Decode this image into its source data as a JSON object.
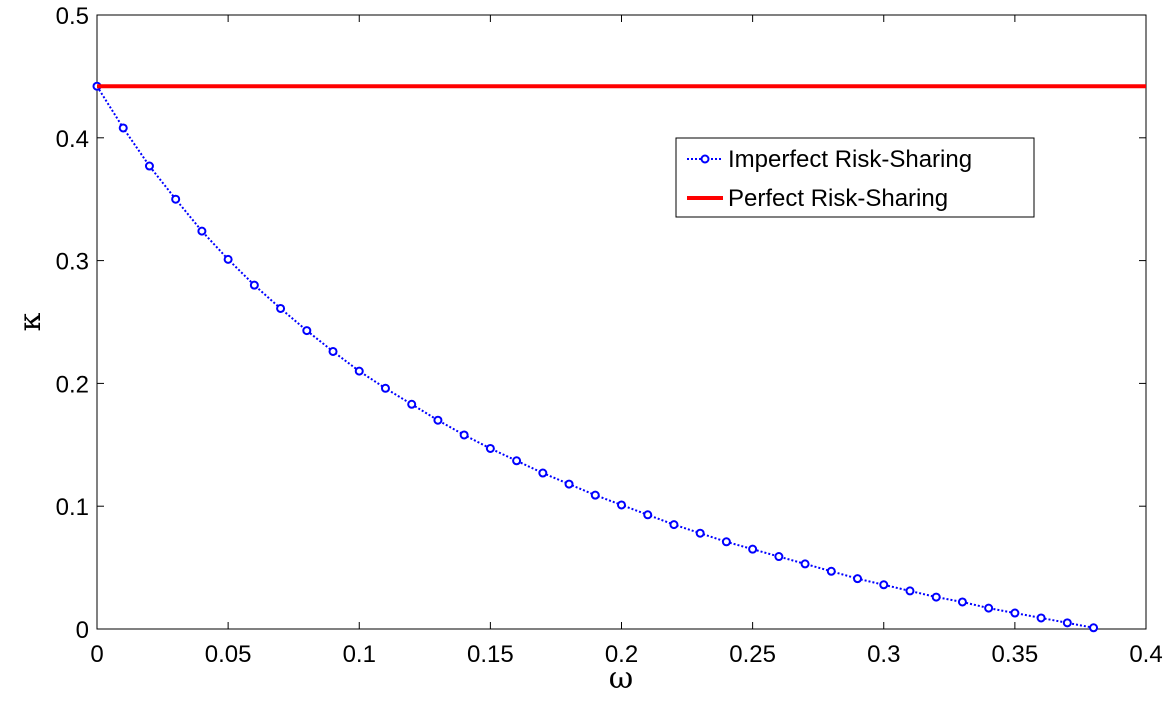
{
  "chart_data": {
    "type": "line",
    "title": "",
    "xlabel": "ω",
    "ylabel": "κ",
    "xlim": [
      0,
      0.4
    ],
    "ylim": [
      0,
      0.5
    ],
    "grid": false,
    "legend_position": "top-right",
    "x_ticks": [
      "0",
      "0.05",
      "0.1",
      "0.15",
      "0.2",
      "0.25",
      "0.3",
      "0.35",
      "0.4"
    ],
    "y_ticks": [
      "0",
      "0.1",
      "0.2",
      "0.3",
      "0.4",
      "0.5"
    ],
    "series": [
      {
        "name": "Imperfect Risk-Sharing",
        "color": "#0000ff",
        "line_style": "dotted",
        "marker": "circle",
        "x": [
          0,
          0.01,
          0.02,
          0.03,
          0.04,
          0.05,
          0.06,
          0.07,
          0.08,
          0.09,
          0.1,
          0.11,
          0.12,
          0.13,
          0.14,
          0.15,
          0.16,
          0.17,
          0.18,
          0.19,
          0.2,
          0.21,
          0.22,
          0.23,
          0.24,
          0.25,
          0.26,
          0.27,
          0.28,
          0.29,
          0.3,
          0.31,
          0.32,
          0.33,
          0.34,
          0.35,
          0.36,
          0.37,
          0.38
        ],
        "y": [
          0.442,
          0.408,
          0.377,
          0.35,
          0.324,
          0.301,
          0.28,
          0.261,
          0.243,
          0.226,
          0.21,
          0.196,
          0.183,
          0.17,
          0.158,
          0.147,
          0.137,
          0.127,
          0.118,
          0.109,
          0.101,
          0.093,
          0.085,
          0.078,
          0.071,
          0.065,
          0.059,
          0.053,
          0.047,
          0.041,
          0.036,
          0.031,
          0.026,
          0.022,
          0.017,
          0.013,
          0.009,
          0.005,
          0.001
        ]
      },
      {
        "name": "Perfect Risk-Sharing",
        "color": "#ff0000",
        "line_style": "solid",
        "marker": "none",
        "x": [
          0,
          0.4
        ],
        "y": [
          0.442,
          0.442
        ]
      }
    ]
  }
}
